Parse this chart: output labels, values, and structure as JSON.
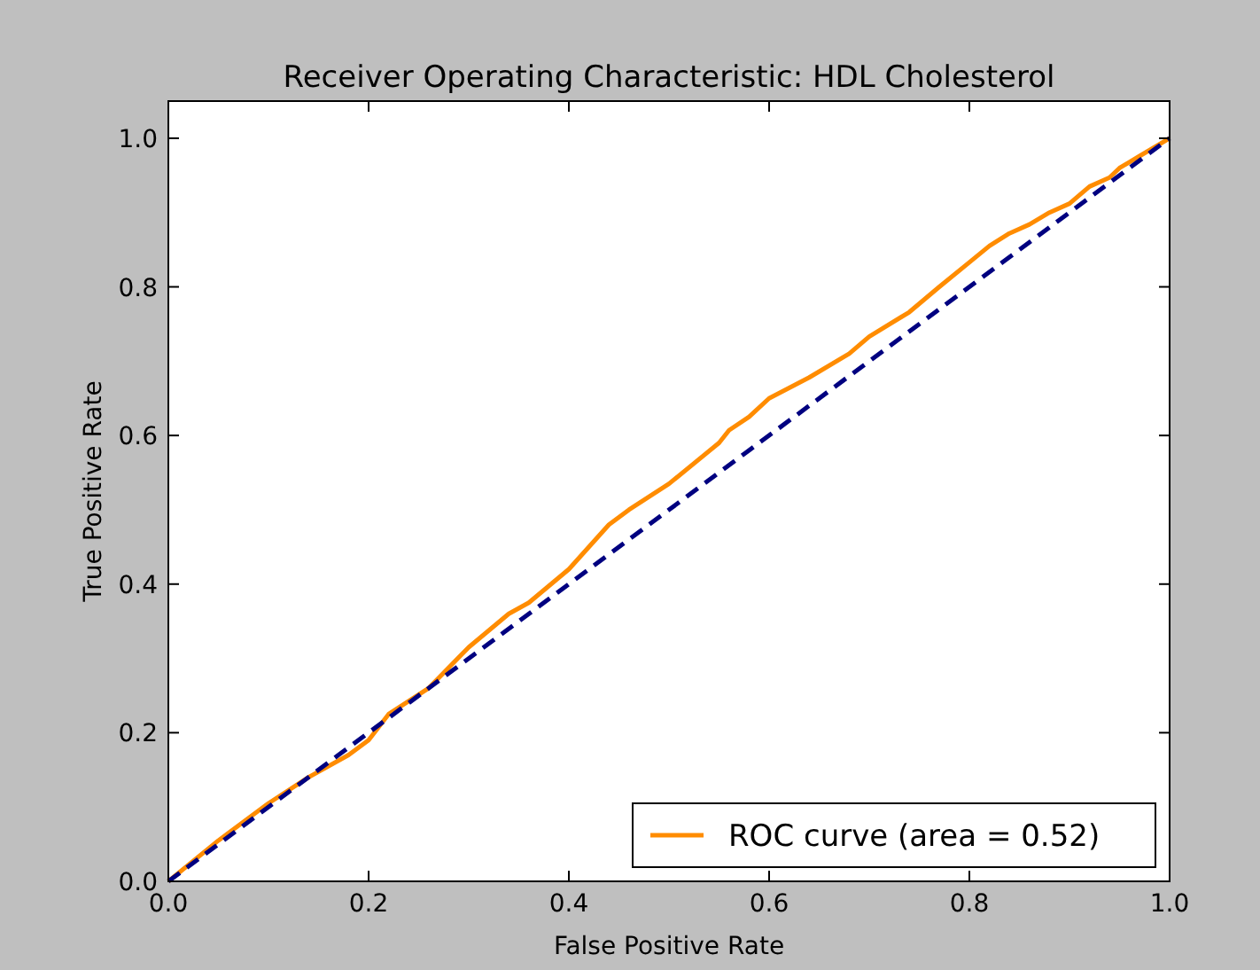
{
  "chart_data": {
    "type": "line",
    "title": "Receiver Operating Characteristic: HDL Cholesterol",
    "xlabel": "False Positive Rate",
    "ylabel": "True Positive Rate",
    "xlim": [
      0,
      1
    ],
    "ylim": [
      0,
      1.05
    ],
    "xticks": [
      {
        "value": 0,
        "label": "0.0"
      },
      0.2,
      0.4,
      0.6,
      0.8,
      {
        "value": 1,
        "label": "1.0"
      }
    ],
    "yticks": [
      {
        "value": 0,
        "label": "0.0"
      },
      0.2,
      0.4,
      0.6,
      0.8,
      {
        "value": 1,
        "label": "1.0"
      }
    ],
    "legend": "bottom right",
    "grid": false,
    "series": [
      {
        "name": "ROC curve (area = 0.52)",
        "color": "#ff8c00",
        "line_style": "solid",
        "x": [
          0,
          0.05,
          0.1,
          0.14,
          0.18,
          0.2,
          0.22,
          0.26,
          0.3,
          0.34,
          0.36,
          0.4,
          0.44,
          0.46,
          0.5,
          0.55,
          0.56,
          0.58,
          0.6,
          0.64,
          0.68,
          0.7,
          0.74,
          0.77,
          0.8,
          0.82,
          0.84,
          0.86,
          0.88,
          0.9,
          0.92,
          0.94,
          0.95,
          0.97,
          1
        ],
        "values": [
          0,
          0.055,
          0.105,
          0.14,
          0.17,
          0.19,
          0.225,
          0.26,
          0.315,
          0.36,
          0.375,
          0.42,
          0.48,
          0.5,
          0.535,
          0.59,
          0.607,
          0.625,
          0.65,
          0.678,
          0.71,
          0.733,
          0.766,
          0.8,
          0.833,
          0.855,
          0.872,
          0.884,
          0.9,
          0.912,
          0.935,
          0.947,
          0.96,
          0.976,
          1
        ]
      },
      {
        "color": "#000080",
        "line_style": "dashed",
        "x": [
          0,
          1
        ],
        "values": [
          0,
          1
        ]
      }
    ]
  }
}
